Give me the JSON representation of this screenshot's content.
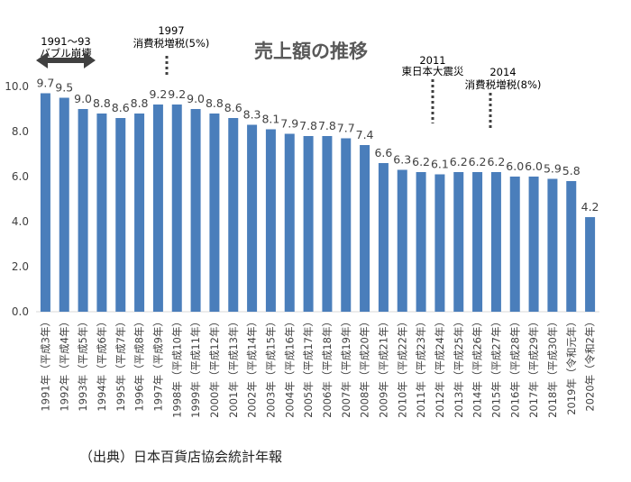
{
  "chart_data": {
    "type": "bar",
    "title": "売上額の推移",
    "xlabel": "",
    "ylabel": "",
    "ylim": [
      0,
      10
    ],
    "yticks": [
      "0.0",
      "2.0",
      "4.0",
      "6.0",
      "8.0",
      "10.0"
    ],
    "grid": false,
    "bar_color": "#4a7ebb",
    "categories": [
      "1991年（平成3年）",
      "1992年（平成4年）",
      "1993年（平成5年）",
      "1994年（平成6年）",
      "1995年（平成7年）",
      "1996年（平成8年）",
      "1997年（平成9年）",
      "1998年（平成10年）",
      "1999年（平成11年）",
      "2000年（平成12年）",
      "2001年（平成13年）",
      "2002年（平成14年）",
      "2003年（平成15年）",
      "2004年（平成16年）",
      "2005年（平成17年）",
      "2006年（平成18年）",
      "2007年（平成19年）",
      "2008年（平成20年）",
      "2009年（平成21年）",
      "2010年（平成22年）",
      "2011年（平成23年）",
      "2012年（平成24年）",
      "2013年（平成25年）",
      "2014年（平成26年）",
      "2015年（平成27年）",
      "2016年（平成28年）",
      "2017年（平成29年）",
      "2018年（平成30年）",
      "2019年（令和元年）",
      "2020年（令和2年）"
    ],
    "values": [
      9.7,
      9.5,
      9.0,
      8.8,
      8.6,
      8.8,
      9.2,
      9.2,
      9.0,
      8.8,
      8.6,
      8.3,
      8.1,
      7.9,
      7.8,
      7.8,
      7.7,
      7.4,
      6.6,
      6.3,
      6.2,
      6.1,
      6.2,
      6.2,
      6.2,
      6.0,
      6.0,
      5.9,
      5.8,
      4.2
    ],
    "value_labels": [
      "9.7",
      "9.5",
      "9.0",
      "8.8",
      "8.6",
      "8.8",
      "9.2",
      "9.2",
      "9.0",
      "8.8",
      "8.6",
      "8.3",
      "8.1",
      "7.9",
      "7.8",
      "7.8",
      "7.7",
      "7.4",
      "6.6",
      "6.3",
      "6.2",
      "6.1",
      "6.2",
      "6.2",
      "6.2",
      "6.0",
      "6.0",
      "5.9",
      "5.8",
      "4.2"
    ],
    "annotations": [
      {
        "id": "bubble",
        "line1": "1991〜93",
        "line2": "バブル崩壊",
        "marker": "double-arrow"
      },
      {
        "id": "tax1997",
        "line1": "1997",
        "line2": "消費税増税(5%)",
        "marker": "dotted-line"
      },
      {
        "id": "quake2011",
        "line1": "2011",
        "line2": "東日本大震災",
        "marker": "dotted-line"
      },
      {
        "id": "tax2014",
        "line1": "2014",
        "line2": "消費税増税(8%)",
        "marker": "dotted-line"
      }
    ]
  },
  "source": "（出典）日本百貨店協会統計年報"
}
